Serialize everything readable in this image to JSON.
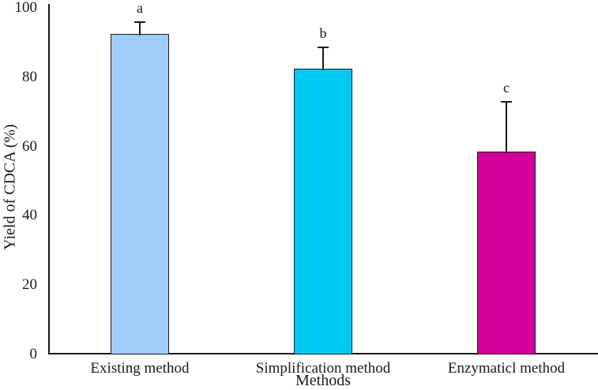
{
  "chart_data": {
    "type": "bar",
    "title": "",
    "xlabel": "Methods",
    "ylabel": "Yield of CDCA (%)",
    "ylim": [
      0,
      100
    ],
    "yticks": [
      0,
      20,
      40,
      60,
      80,
      100
    ],
    "categories": [
      "Existing method",
      "Simplification method",
      "Enzymaticl method"
    ],
    "values": [
      92.5,
      82.5,
      58.5
    ],
    "error_upper": [
      3.5,
      6,
      14.5
    ],
    "significance_letters": [
      "a",
      "b",
      "c"
    ],
    "bar_colors": [
      "#9fcdfa",
      "#00c9f2",
      "#d4009a"
    ],
    "bar_border_color": "#1a1a1a",
    "axis_color": "#1a1a1a",
    "grid": "off",
    "legend": "none"
  }
}
